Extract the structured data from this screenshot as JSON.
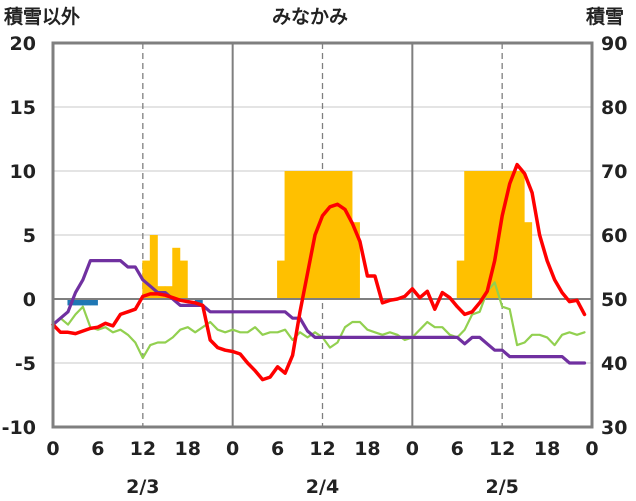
{
  "chart_data": {
    "type": "line",
    "title": "みなかみ",
    "ylabel": "積雪以外",
    "y2label": "積雪",
    "ylim": [
      -10,
      20
    ],
    "y2lim": [
      30,
      90
    ],
    "yticks": [
      -10,
      -5,
      0,
      5,
      10,
      15,
      20
    ],
    "y2ticks": [
      30,
      40,
      50,
      60,
      70,
      80,
      90
    ],
    "xlim": [
      0,
      72
    ],
    "xtick_values": [
      0,
      6,
      12,
      18,
      24,
      30,
      36,
      42,
      48,
      54,
      60,
      66,
      72
    ],
    "xtick_labels": [
      "0",
      "6",
      "12",
      "18",
      "0",
      "6",
      "12",
      "18",
      "0",
      "6",
      "12",
      "18",
      "0"
    ],
    "day_dividers": [
      24,
      48
    ],
    "dashed_lines": [
      12,
      36,
      60
    ],
    "dates": [
      {
        "label": "2/3",
        "x": 12
      },
      {
        "label": "2/4",
        "x": 36
      },
      {
        "label": "2/5",
        "x": 60
      }
    ],
    "grid": "horizontal",
    "series": [
      {
        "name": "precipitation",
        "kind": "bar",
        "color": "#FFC000",
        "x": [
          12,
          13,
          14,
          15,
          16,
          17,
          30,
          31,
          32,
          33,
          34,
          35,
          36,
          37,
          38,
          39,
          40,
          54,
          55,
          56,
          57,
          58,
          59,
          60,
          61,
          62,
          63,
          64
        ],
        "values": [
          3,
          5,
          1,
          1,
          4,
          3,
          3,
          10,
          10,
          10,
          10,
          10,
          10,
          10,
          10,
          10,
          6,
          3,
          10,
          10,
          10,
          10,
          10,
          10,
          10,
          10,
          6,
          0
        ]
      },
      {
        "name": "snowfall",
        "kind": "bar",
        "color": "#1F77B4",
        "x": [
          2,
          3,
          4,
          5,
          19
        ],
        "values": [
          -0.5,
          -0.5,
          -0.5,
          -0.5,
          -0.5
        ]
      },
      {
        "name": "snow-depth",
        "kind": "line",
        "axis": "right",
        "color": "#7030A0",
        "x": [
          0,
          1,
          2,
          3,
          4,
          5,
          6,
          7,
          8,
          9,
          10,
          11,
          12,
          13,
          14,
          15,
          16,
          17,
          18,
          19,
          20,
          21,
          22,
          23,
          24,
          25,
          26,
          27,
          28,
          29,
          30,
          31,
          32,
          33,
          34,
          35,
          36,
          37,
          38,
          39,
          40,
          41,
          42,
          43,
          44,
          45,
          46,
          47,
          48,
          49,
          50,
          51,
          52,
          53,
          54,
          55,
          56,
          57,
          58,
          59,
          60,
          61,
          62,
          63,
          64,
          65,
          66,
          67,
          68,
          69,
          70,
          71
        ],
        "values": [
          46,
          47,
          48,
          51,
          53,
          56,
          56,
          56,
          56,
          56,
          55,
          55,
          53,
          52,
          51,
          51,
          50,
          49,
          49,
          49,
          49,
          48,
          48,
          48,
          48,
          48,
          48,
          48,
          48,
          48,
          48,
          48,
          47,
          47,
          45,
          44,
          44,
          44,
          44,
          44,
          44,
          44,
          44,
          44,
          44,
          44,
          44,
          44,
          44,
          44,
          44,
          44,
          44,
          44,
          44,
          43,
          44,
          44,
          43,
          42,
          42,
          41,
          41,
          41,
          41,
          41,
          41,
          41,
          41,
          40,
          40,
          40
        ]
      },
      {
        "name": "temperature",
        "kind": "line",
        "color": "#FF0000",
        "x": [
          0,
          1,
          2,
          3,
          4,
          5,
          6,
          7,
          8,
          9,
          10,
          11,
          12,
          13,
          14,
          15,
          16,
          17,
          18,
          19,
          20,
          21,
          22,
          23,
          24,
          25,
          26,
          27,
          28,
          29,
          30,
          31,
          32,
          33,
          34,
          35,
          36,
          37,
          38,
          39,
          40,
          41,
          42,
          43,
          44,
          45,
          46,
          47,
          48,
          49,
          50,
          51,
          52,
          53,
          54,
          55,
          56,
          57,
          58,
          59,
          60,
          61,
          62,
          63,
          64,
          65,
          66,
          67,
          68,
          69,
          70,
          71
        ],
        "values": [
          -2,
          -2.6,
          -2.6,
          -2.7,
          -2.5,
          -2.3,
          -2.2,
          -1.9,
          -2.1,
          -1.2,
          -1,
          -0.8,
          0.2,
          0.4,
          0.4,
          0.3,
          0.1,
          -0.1,
          -0.2,
          -0.3,
          -0.5,
          -3.2,
          -3.8,
          -4,
          -4.1,
          -4.3,
          -5,
          -5.6,
          -6.3,
          -6.1,
          -5.3,
          -5.8,
          -4.4,
          -1,
          2,
          5,
          6.5,
          7.2,
          7.4,
          7,
          5.9,
          4.5,
          1.8,
          1.8,
          -0.3,
          -0.1,
          0,
          0.2,
          0.8,
          0.1,
          0.6,
          -0.8,
          0.5,
          0.1,
          -0.6,
          -1.2,
          -1,
          -0.3,
          0.6,
          3,
          6.5,
          9,
          10.5,
          9.8,
          8.3,
          5,
          3,
          1.5,
          0.5,
          -0.2,
          -0.1,
          -1.2
        ]
      },
      {
        "name": "humidity",
        "kind": "line",
        "color": "#92D050",
        "x": [
          0,
          1,
          2,
          3,
          4,
          5,
          6,
          7,
          8,
          9,
          10,
          11,
          12,
          13,
          14,
          15,
          16,
          17,
          18,
          19,
          20,
          21,
          22,
          23,
          24,
          25,
          26,
          27,
          28,
          29,
          30,
          31,
          32,
          33,
          34,
          35,
          36,
          37,
          38,
          39,
          40,
          41,
          42,
          43,
          44,
          45,
          46,
          47,
          48,
          49,
          50,
          51,
          52,
          53,
          54,
          55,
          56,
          57,
          58,
          59,
          60,
          61,
          62,
          63,
          64,
          65,
          66,
          67,
          68,
          69,
          70,
          71
        ],
        "values": [
          -2,
          -1.5,
          -2,
          -1.2,
          -0.6,
          -2.2,
          -2.4,
          -2.2,
          -2.6,
          -2.4,
          -2.8,
          -3.4,
          -4.6,
          -3.6,
          -3.4,
          -3.4,
          -3,
          -2.4,
          -2.2,
          -2.6,
          -2.2,
          -1.8,
          -2.4,
          -2.6,
          -2.4,
          -2.6,
          -2.6,
          -2.2,
          -2.8,
          -2.6,
          -2.6,
          -2.4,
          -3.2,
          -2.6,
          -3,
          -2.6,
          -3,
          -3.8,
          -3.4,
          -2.2,
          -1.8,
          -1.8,
          -2.4,
          -2.6,
          -2.8,
          -2.6,
          -2.8,
          -3.2,
          -3,
          -2.4,
          -1.8,
          -2.2,
          -2.2,
          -2.8,
          -3,
          -2.4,
          -1.2,
          -1,
          0.6,
          1.3,
          -0.6,
          -0.8,
          -3.6,
          -3.4,
          -2.8,
          -2.8,
          -3,
          -3.6,
          -2.8,
          -2.6,
          -2.8,
          -2.6
        ]
      }
    ]
  }
}
